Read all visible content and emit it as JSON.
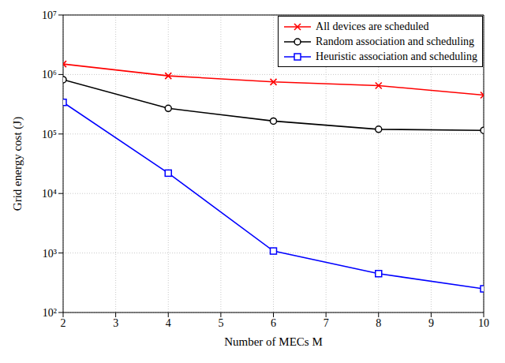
{
  "chart_data": {
    "type": "line",
    "x_label": "Number of MECs M",
    "y_label": "Grid energy cost (J)",
    "x": [
      2,
      4,
      6,
      8,
      10
    ],
    "series": [
      {
        "name": "All devices are scheduled",
        "color": "#ff0000",
        "marker": "x",
        "line_style": "solid",
        "values": [
          1500000,
          950000,
          750000,
          650000,
          450000
        ]
      },
      {
        "name": "Random association and scheduling",
        "color": "#000000",
        "marker": "circle",
        "line_style": "solid",
        "values": [
          820000,
          270000,
          165000,
          120000,
          115000
        ]
      },
      {
        "name": "Heuristic association and scheduling",
        "color": "#0000ff",
        "marker": "square",
        "line_style": "solid",
        "values": [
          340000,
          22000,
          1080,
          450,
          250
        ]
      }
    ],
    "xlim": [
      2,
      10
    ],
    "xticks": [
      2,
      3,
      4,
      5,
      6,
      7,
      8,
      9,
      10
    ],
    "ylim": [
      100,
      10000000
    ],
    "yticks": [
      {
        "value": 100,
        "label": "10²"
      },
      {
        "value": 1000,
        "label": "10³"
      },
      {
        "value": 10000,
        "label": "10⁴"
      },
      {
        "value": 100000,
        "label": "10⁵"
      },
      {
        "value": 1000000,
        "label": "10⁶"
      },
      {
        "value": 10000000,
        "label": "10⁷"
      }
    ],
    "log": "y",
    "grid": true,
    "legend": "upper right"
  }
}
